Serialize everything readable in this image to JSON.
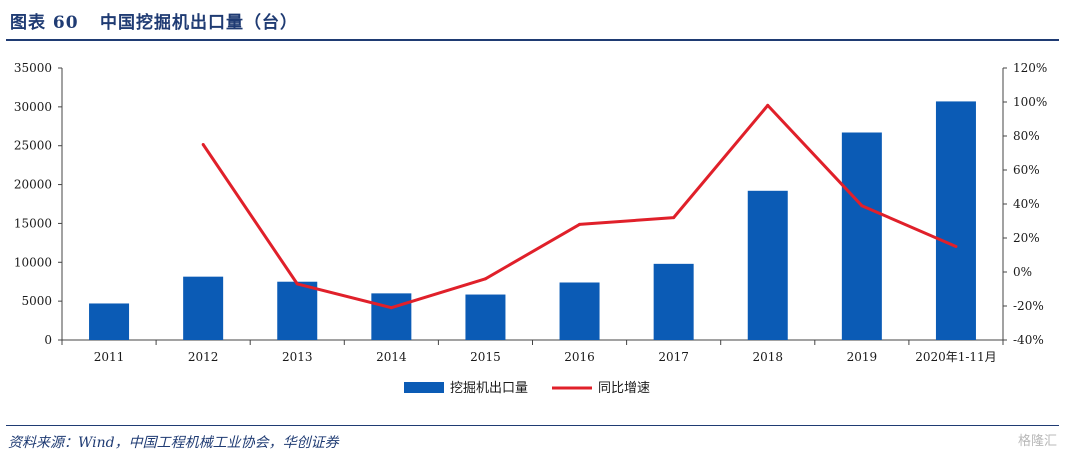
{
  "header": {
    "label": "图表 60",
    "title": "中国挖掘机出口量（台）"
  },
  "footer": {
    "source": "资料来源：Wind，中国工程机械工业协会，华创证券",
    "watermark": "格隆汇"
  },
  "chart_data": {
    "type": "bar",
    "categories": [
      "2011",
      "2012",
      "2013",
      "2014",
      "2015",
      "2016",
      "2017",
      "2018",
      "2019",
      "2020年1-11月"
    ],
    "series": [
      {
        "name": "挖掘机出口量",
        "type": "bar",
        "axis": "left",
        "color": "#0b5bb5",
        "values": [
          4700,
          8150,
          7500,
          6000,
          5850,
          7400,
          9800,
          19200,
          26700,
          30700
        ]
      },
      {
        "name": "同比增速",
        "type": "line",
        "axis": "right",
        "color": "#e0202a",
        "values": [
          null,
          75,
          -7,
          -21,
          -4,
          28,
          32,
          98,
          39,
          15
        ]
      }
    ],
    "y_left": {
      "min": 0,
      "max": 35000,
      "ticks": [
        "0",
        "5000",
        "10000",
        "15000",
        "20000",
        "25000",
        "30000",
        "35000"
      ]
    },
    "y_right": {
      "min": -40,
      "max": 120,
      "ticks": [
        "-40%",
        "-20%",
        "0%",
        "20%",
        "40%",
        "60%",
        "80%",
        "100%",
        "120%"
      ]
    },
    "legend_position": "bottom-center",
    "grid": false
  }
}
